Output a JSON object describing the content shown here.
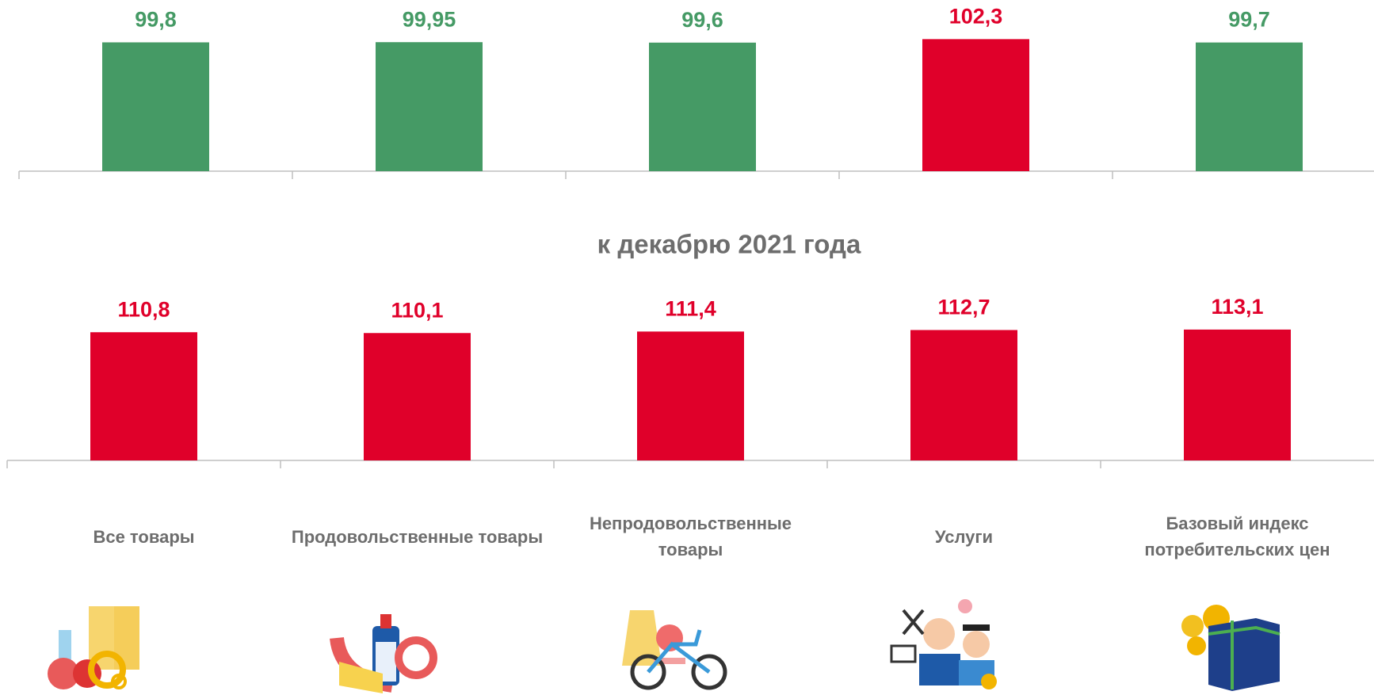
{
  "chart_data": [
    {
      "type": "bar",
      "values": [
        99.8,
        99.95,
        99.6,
        102.3,
        99.7
      ],
      "value_labels": [
        "99,8",
        "99,95",
        "99,6",
        "102,3",
        "99,7"
      ],
      "colors": [
        "#459a65",
        "#459a65",
        "#459a65",
        "#e0002a",
        "#459a65"
      ],
      "ylim": [
        0,
        132
      ]
    },
    {
      "type": "bar",
      "title": "к декабрю 2021 года",
      "categories": [
        "Все товары",
        "Продовольственные товары",
        "Непродовольственные товары",
        "Услуги",
        "Базовый индекс потребительских цен"
      ],
      "values": [
        110.8,
        110.1,
        111.4,
        112.7,
        113.1
      ],
      "value_labels": [
        "110,8",
        "110,1",
        "111,4",
        "112,7",
        "113,1"
      ],
      "colors": [
        "#e0002a",
        "#e0002a",
        "#e0002a",
        "#e0002a",
        "#e0002a"
      ],
      "ylim": [
        0,
        150
      ]
    }
  ]
}
